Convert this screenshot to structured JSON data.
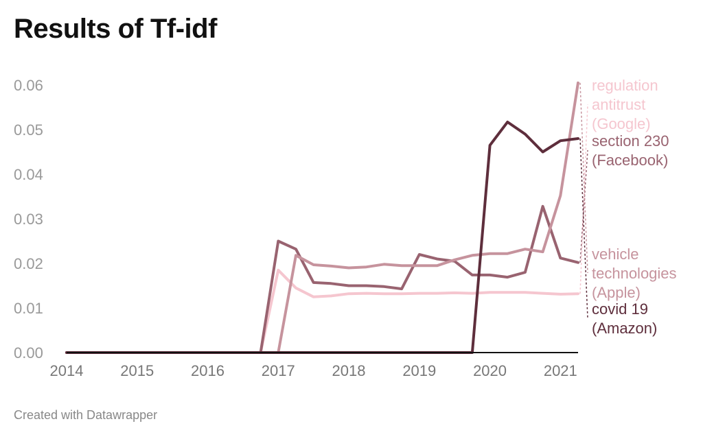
{
  "title": "Results of Tf-idf",
  "footer": "Created with Datawrapper",
  "chart_data": {
    "type": "line",
    "title": "Results of Tf-idf",
    "xlabel": "",
    "ylabel": "",
    "xlim": [
      2014,
      2021.25
    ],
    "ylim": [
      0,
      0.06
    ],
    "x_ticks": [
      "2014",
      "2015",
      "2016",
      "2017",
      "2018",
      "2019",
      "2020",
      "2021"
    ],
    "y_ticks": [
      "0.00",
      "0.01",
      "0.02",
      "0.03",
      "0.04",
      "0.05",
      "0.06"
    ],
    "grid": false,
    "legend": "direct labels at right end of lines",
    "series": [
      {
        "name": "regulation antitrust (Google)",
        "label_lines": [
          "regulation",
          "antitrust",
          "(Google)"
        ],
        "color": "#f5c6cf",
        "x": [
          2014,
          2016.75,
          2017.0,
          2017.25,
          2017.5,
          2017.75,
          2018.0,
          2018.25,
          2018.5,
          2018.75,
          2019.0,
          2019.25,
          2019.5,
          2019.75,
          2020.0,
          2020.25,
          2020.5,
          2020.75,
          2021.0,
          2021.25
        ],
        "y": [
          0,
          0,
          0.0185,
          0.0145,
          0.0125,
          0.0127,
          0.0132,
          0.0133,
          0.0132,
          0.0132,
          0.0133,
          0.0133,
          0.0134,
          0.0133,
          0.0135,
          0.0135,
          0.0135,
          0.0133,
          0.0131,
          0.0132
        ]
      },
      {
        "name": "section 230 (Facebook)",
        "label_lines": [
          "section 230",
          "(Facebook)"
        ],
        "color": "#996370",
        "x": [
          2014,
          2016.75,
          2017.0,
          2017.25,
          2017.5,
          2017.75,
          2018.0,
          2018.25,
          2018.5,
          2018.75,
          2019.0,
          2019.25,
          2019.5,
          2019.75,
          2020.0,
          2020.25,
          2020.5,
          2020.75,
          2021.0,
          2021.25
        ],
        "y": [
          0,
          0,
          0.025,
          0.0232,
          0.0157,
          0.0155,
          0.015,
          0.015,
          0.0148,
          0.0143,
          0.022,
          0.021,
          0.0205,
          0.0174,
          0.0174,
          0.0169,
          0.018,
          0.0328,
          0.0212,
          0.0202
        ]
      },
      {
        "name": "vehicle technologies (Apple)",
        "label_lines": [
          "vehicle",
          "technologies",
          "(Apple)"
        ],
        "color": "#c6939d",
        "x": [
          2014,
          2017.0,
          2017.25,
          2017.5,
          2017.75,
          2018.0,
          2018.25,
          2018.5,
          2018.75,
          2019.0,
          2019.25,
          2019.5,
          2019.75,
          2020.0,
          2020.25,
          2020.5,
          2020.75,
          2021.0,
          2021.25
        ],
        "y": [
          0,
          0,
          0.0218,
          0.0197,
          0.0194,
          0.019,
          0.0192,
          0.0198,
          0.0195,
          0.0195,
          0.0195,
          0.0208,
          0.0218,
          0.0222,
          0.0222,
          0.0232,
          0.0226,
          0.0352,
          0.0605
        ]
      },
      {
        "name": "covid 19 (Amazon)",
        "label_lines": [
          "covid 19",
          "(Amazon)"
        ],
        "color": "#5e2e3c",
        "x": [
          2014,
          2019.75,
          2020.0,
          2020.25,
          2020.5,
          2020.75,
          2021.0,
          2021.25
        ],
        "y": [
          0,
          0,
          0.0465,
          0.0517,
          0.049,
          0.045,
          0.0475,
          0.048
        ]
      }
    ]
  }
}
